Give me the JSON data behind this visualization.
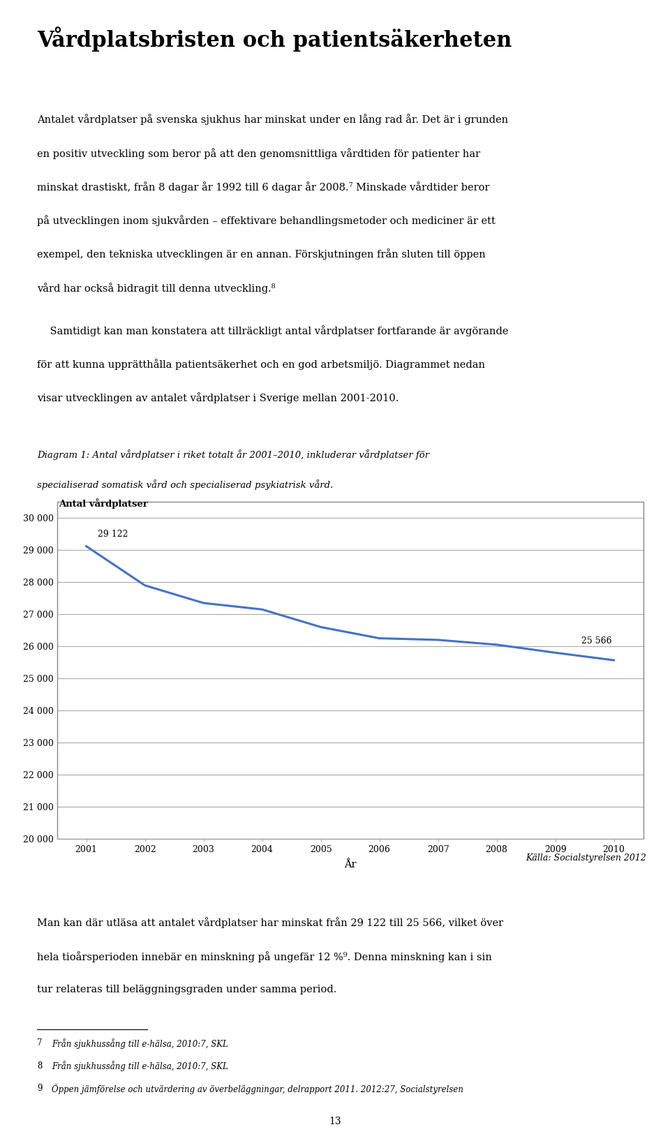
{
  "title": "Vårdplatsbristen och patientsäkerheten",
  "para1_lines": [
    "Antalet vårdplatser på svenska sjukhus har minskat under en lång rad år. Det är i grunden",
    "en positiv utveckling som beror på att den genomsnittliga vårdtiden för patienter har",
    "minskat drastiskt, från 8 dagar år 1992 till 6 dagar år 2008.⁷ Minskade vårdtider beror",
    "på utvecklingen inom sjukvården – effektivare behandlingsmetoder och mediciner är ett",
    "exempel, den tekniska utvecklingen är en annan. Förskjutningen från sluten till öppen",
    "vård har också bidragit till denna utveckling.⁸"
  ],
  "para2_lines": [
    "    Samtidigt kan man konstatera att tillräckligt antal vårdplatser fortfarande är avgörande",
    "för att kunna upprätthålla patientsäkerhet och en god arbetsmiljö. Diagrammet nedan",
    "visar utvecklingen av antalet vårdplatser i Sverige mellan 2001-2010."
  ],
  "diagram_caption_lines": [
    "Diagram 1: Antal vårdplatser i riket totalt år 2001–2010, inkluderar vårdplatser för",
    "specialiserad somatisk vård och specialiserad psykiatrisk vård."
  ],
  "chart_ylabel": "Antal vårdplatser",
  "chart_xlabel": "År",
  "source": "Källa: Socialstyrelsen 2012",
  "years": [
    2001,
    2002,
    2003,
    2004,
    2005,
    2006,
    2007,
    2008,
    2009,
    2010
  ],
  "values": [
    29122,
    27900,
    27350,
    27150,
    26600,
    26250,
    26200,
    26050,
    25800,
    25566
  ],
  "first_label": "29 122",
  "last_label": "25 566",
  "line_color": "#4472C4",
  "grid_color": "#AAAAAA",
  "border_color": "#888888",
  "ylim_min": 20000,
  "ylim_max": 30500,
  "yticks": [
    20000,
    21000,
    22000,
    23000,
    24000,
    25000,
    26000,
    27000,
    28000,
    29000,
    30000
  ],
  "para3_lines": [
    "Man kan där utläsa att antalet vårdplatser har minskat från 29 122 till 25 566, vilket över",
    "hela tioårsperioden innebär en minskning på ungefär 12 %⁹. Denna minskning kan i sin",
    "tur relateras till beläggningsgraden under samma period."
  ],
  "footnote7_num": "7",
  "footnote7_text": "Från sjukhussång till e-hälsa, 2010:7, SKL",
  "footnote8_num": "8",
  "footnote8_text": "Från sjukhussång till e-hälsa, 2010:7, SKL",
  "footnote9_num": "9",
  "footnote9_text": "Öppen jämförelse och utvärdering av överbeläggningar, delrapport 2011. 2012:27, Socialstyrelsen",
  "page_number": "13",
  "bg_color": "#FFFFFF",
  "text_color": "#000000"
}
